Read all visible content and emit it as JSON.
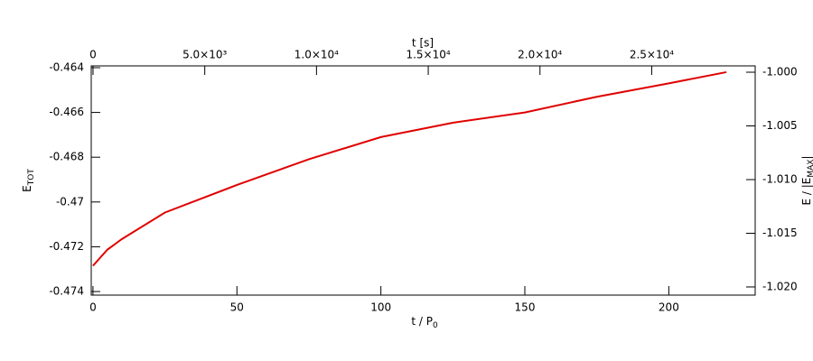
{
  "chart_data": {
    "type": "line",
    "x_label": {
      "text": "t / P",
      "sub": "0"
    },
    "x2_label": "t [s]",
    "y_label": {
      "text": "E",
      "sub": "TOT"
    },
    "y2_label": {
      "text": "E / |E",
      "sub": "MAX",
      "end": "|"
    },
    "x": [
      0,
      5,
      10,
      25,
      50,
      75,
      100,
      125,
      150,
      175,
      200,
      220
    ],
    "series": [
      {
        "color": "#e00000",
        "values": [
          -0.47285,
          -0.47213,
          -0.47166,
          -0.47047,
          -0.46924,
          -0.46809,
          -0.4671,
          -0.46646,
          -0.466,
          -0.4653,
          -0.4647,
          -0.4642
        ]
      }
    ],
    "xlim": [
      -0.6,
      230
    ],
    "xticks": [
      0,
      50,
      100,
      150,
      200
    ],
    "x2lim": [
      -80,
      29630
    ],
    "x2ticks": [
      0,
      {
        "value": 5000,
        "label": "5.0×10³"
      },
      {
        "value": 10000,
        "label": "1.0×10⁴"
      },
      {
        "value": 15000,
        "label": "1.5×10⁴"
      },
      {
        "value": 20000,
        "label": "2.0×10⁴"
      },
      {
        "value": 25000,
        "label": "2.5×10⁴"
      }
    ],
    "ylim": [
      -0.47416,
      -0.46392
    ],
    "yticks": [
      -0.474,
      -0.472,
      -0.47,
      -0.468,
      -0.466,
      -0.464
    ],
    "y2lim": [
      -1.02076,
      -0.99941
    ],
    "y2ticks": [
      {
        "value": -1.02,
        "label": "-1.020"
      },
      {
        "value": -1.015,
        "label": "-1.015"
      },
      {
        "value": -1.01,
        "label": "-1.010"
      },
      {
        "value": -1.005,
        "label": "-1.005"
      },
      {
        "value": -1,
        "label": "-1.000"
      }
    ]
  }
}
